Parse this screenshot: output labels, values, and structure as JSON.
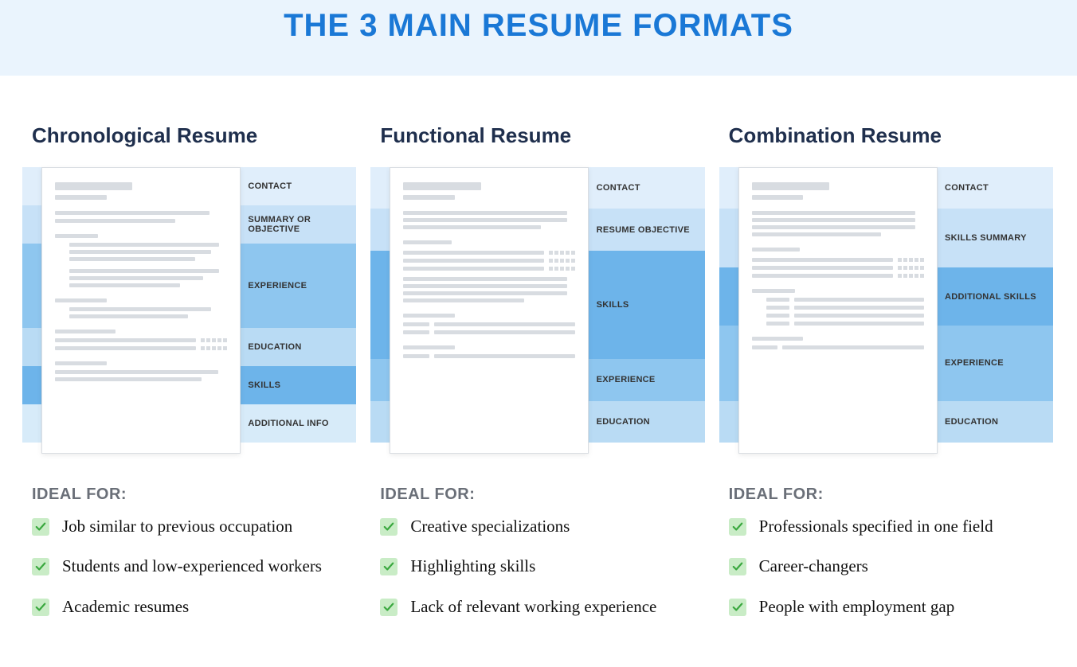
{
  "header": {
    "title": "THE 3 MAIN RESUME FORMATS",
    "title_color": "#1a78d6",
    "band_bg": "#eaf4fd",
    "title_fontsize": 40
  },
  "colors": {
    "col_title": "#1f2f4d",
    "ideal_title": "#6a6f78",
    "checkbox_bg": "#c9ecc6",
    "check_stroke": "#3aa83f",
    "skeleton": "#d8dce1",
    "paper_border": "#d9dde2",
    "band_palette": [
      "#e0eefb",
      "#c7e1f7",
      "#8ec6ef",
      "#6db4ea",
      "#b9dbf4",
      "#d7ebf9"
    ]
  },
  "ideal_label": "IDEAL FOR:",
  "formats": [
    {
      "title": "Chronological Resume",
      "sections": [
        {
          "label": "CONTACT",
          "color": "#e0eefb"
        },
        {
          "label": "SUMMARY OR OBJECTIVE",
          "color": "#c7e1f7"
        },
        {
          "label": "EXPERIENCE",
          "color": "#8ec6ef",
          "grow": 2.2
        },
        {
          "label": "EDUCATION",
          "color": "#b9dbf4"
        },
        {
          "label": "SKILLS",
          "color": "#6db4ea"
        },
        {
          "label": "ADDITIONAL INFO",
          "color": "#d7ebf9"
        }
      ],
      "ideal_for": [
        "Job similar to previous occupation",
        "Students and  low-experienced workers",
        "Academic resumes"
      ]
    },
    {
      "title": "Functional Resume",
      "sections": [
        {
          "label": "CONTACT",
          "color": "#e0eefb"
        },
        {
          "label": "RESUME OBJECTIVE",
          "color": "#c7e1f7"
        },
        {
          "label": "SKILLS",
          "color": "#6db4ea",
          "grow": 2.6
        },
        {
          "label": "EXPERIENCE",
          "color": "#8ec6ef"
        },
        {
          "label": "EDUCATION",
          "color": "#b9dbf4"
        }
      ],
      "ideal_for": [
        "Creative specializations",
        "Highlighting skills",
        "Lack of relevant working experience"
      ]
    },
    {
      "title": "Combination Resume",
      "sections": [
        {
          "label": "CONTACT",
          "color": "#e0eefb"
        },
        {
          "label": "SKILLS SUMMARY",
          "color": "#c7e1f7",
          "grow": 1.4
        },
        {
          "label": "ADDITIONAL SKILLS",
          "color": "#6db4ea",
          "grow": 1.4
        },
        {
          "label": "EXPERIENCE",
          "color": "#8ec6ef",
          "grow": 1.8
        },
        {
          "label": "EDUCATION",
          "color": "#b9dbf4"
        }
      ],
      "ideal_for": [
        "Professionals specified in one field",
        "Career-changers",
        "People with employment gap"
      ]
    }
  ]
}
